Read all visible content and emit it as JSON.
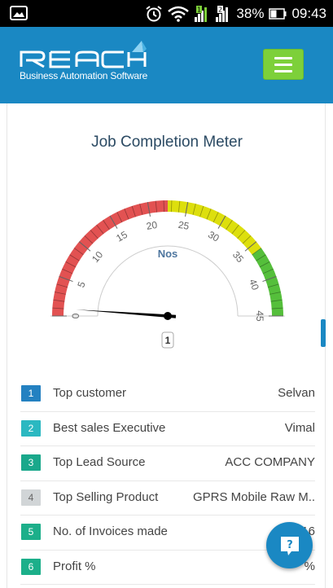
{
  "status_bar": {
    "battery_percent": "38%",
    "time": "09:43",
    "icons": [
      "image-icon",
      "alarm-icon",
      "wifi-icon",
      "signal-sim1-icon",
      "signal-sim2-icon",
      "battery-icon"
    ]
  },
  "header": {
    "logo_text": "Reach",
    "logo_tagline": "Business Automation Software",
    "menu_icon": "hamburger-icon",
    "colors": {
      "bar": "#1a88c3",
      "menu_button": "#7dd03a"
    }
  },
  "meter": {
    "title": "Job Completion Meter",
    "unit_label": "Nos",
    "value": 1,
    "value_label": "1",
    "min": 0,
    "max": 45,
    "ticks": [
      "0",
      "5",
      "10",
      "15",
      "20",
      "25",
      "30",
      "35",
      "40",
      "45"
    ],
    "bands": [
      {
        "from": 0,
        "to": 22.5,
        "color": "#e25252"
      },
      {
        "from": 22.5,
        "to": 36,
        "color": "#dddf0d"
      },
      {
        "from": 36,
        "to": 45,
        "color": "#55bf3b"
      }
    ]
  },
  "summary": {
    "rows": [
      {
        "num": "1",
        "label": "Top customer",
        "value": "Selvan",
        "color": "#2481c1"
      },
      {
        "num": "2",
        "label": "Best sales Executive",
        "value": "Vimal",
        "color": "#2bb8c1"
      },
      {
        "num": "3",
        "label": "Top Lead Source",
        "value": "ACC COMPANY",
        "color": "#19a88b"
      },
      {
        "num": "4",
        "label": "Top Selling Product",
        "value": "GPRS Mobile Raw M..",
        "color": "#d1d5d7"
      },
      {
        "num": "5",
        "label": "No. of Invoices made",
        "value": "16",
        "color": "#1caf8a"
      },
      {
        "num": "6",
        "label": "Profit %",
        "value": "%",
        "color": "#1caf8a"
      }
    ]
  },
  "help_button": {
    "icon": "help-chat-icon"
  }
}
